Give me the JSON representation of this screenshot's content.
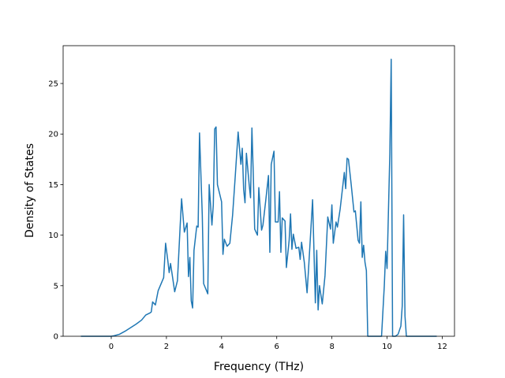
{
  "chart_data": {
    "type": "line",
    "xlabel": "Frequency (THz)",
    "ylabel": "Density of States",
    "xlim": [
      -1.745,
      12.445
    ],
    "ylim": [
      0,
      28.74
    ],
    "xticks": [
      0,
      2,
      4,
      6,
      8,
      10,
      12
    ],
    "yticks": [
      0,
      5,
      10,
      15,
      20,
      25
    ],
    "x": [
      -1.1,
      0,
      0.1,
      0.3,
      0.5,
      0.7,
      0.9,
      1.1,
      1.25,
      1.4,
      1.45,
      1.5,
      1.6,
      1.7,
      1.9,
      1.97,
      2.05,
      2.1,
      2.15,
      2.3,
      2.4,
      2.5,
      2.55,
      2.65,
      2.75,
      2.8,
      2.85,
      2.9,
      2.95,
      3.0,
      3.1,
      3.15,
      3.2,
      3.3,
      3.35,
      3.5,
      3.55,
      3.65,
      3.7,
      3.75,
      3.8,
      3.85,
      4.0,
      4.05,
      4.1,
      4.2,
      4.3,
      4.4,
      4.5,
      4.6,
      4.7,
      4.75,
      4.8,
      4.85,
      4.9,
      5.0,
      5.05,
      5.1,
      5.15,
      5.2,
      5.3,
      5.35,
      5.45,
      5.5,
      5.6,
      5.7,
      5.75,
      5.8,
      5.9,
      5.95,
      6.05,
      6.1,
      6.15,
      6.2,
      6.3,
      6.35,
      6.45,
      6.5,
      6.55,
      6.6,
      6.7,
      6.8,
      6.85,
      6.9,
      7.0,
      7.1,
      7.15,
      7.3,
      7.4,
      7.45,
      7.5,
      7.55,
      7.65,
      7.75,
      7.85,
      7.95,
      8.0,
      8.05,
      8.15,
      8.2,
      8.3,
      8.4,
      8.45,
      8.5,
      8.55,
      8.6,
      8.7,
      8.8,
      8.85,
      8.95,
      9.0,
      9.05,
      9.1,
      9.15,
      9.2,
      9.25,
      9.3,
      9.35,
      9.8,
      9.9,
      9.95,
      10.0,
      10.1,
      10.15,
      10.2,
      10.3,
      10.4,
      10.5,
      10.55,
      10.6,
      10.65,
      10.7,
      11.8
    ],
    "series": [
      {
        "color": "#1f77b4",
        "values": [
          0,
          0,
          0.05,
          0.2,
          0.5,
          0.85,
          1.2,
          1.6,
          2.1,
          2.3,
          2.4,
          3.4,
          3.1,
          4.5,
          5.8,
          9.2,
          7.5,
          6.3,
          7.2,
          4.4,
          5.5,
          11,
          13.6,
          10.3,
          11.2,
          5.9,
          7.8,
          3.5,
          2.8,
          8.5,
          10.9,
          10.8,
          20.1,
          12,
          5.2,
          4.2,
          15,
          11,
          13,
          20.5,
          20.7,
          15,
          13.3,
          8.1,
          9.6,
          8.9,
          9.2,
          12,
          16,
          20.2,
          17,
          18.6,
          14.5,
          13.2,
          18.1,
          15,
          13.7,
          20.6,
          16,
          10.6,
          10,
          14.7,
          10.5,
          11,
          13.4,
          15.9,
          8.3,
          17,
          18.3,
          11.3,
          11.3,
          14.3,
          8.3,
          11.7,
          11.4,
          6.8,
          9.5,
          12.1,
          8.6,
          10.1,
          8.7,
          8.8,
          7.6,
          9.3,
          7.3,
          4.3,
          6.5,
          13.5,
          3.3,
          8.5,
          2.6,
          5,
          3.2,
          6,
          11.8,
          10.6,
          13,
          9.2,
          11.3,
          10.8,
          12.6,
          15,
          16.2,
          14.6,
          17.6,
          17.5,
          15,
          12.3,
          12.4,
          9.5,
          9.2,
          13.3,
          7.8,
          9,
          7.3,
          6.5,
          0,
          0,
          0,
          5,
          8.4,
          6.7,
          18,
          27.4,
          0,
          0,
          0.2,
          1,
          3,
          12,
          2,
          0,
          0
        ]
      }
    ]
  }
}
